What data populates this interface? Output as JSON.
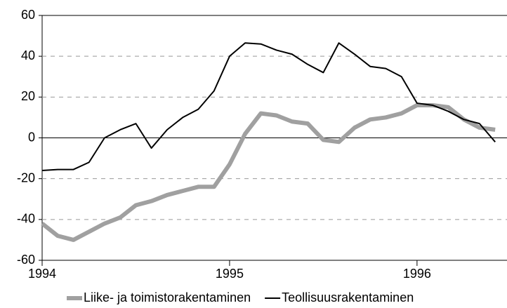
{
  "chart_data": {
    "type": "line",
    "x": [
      1994,
      1994.083,
      1994.167,
      1994.25,
      1994.333,
      1994.417,
      1994.5,
      1994.583,
      1994.667,
      1994.75,
      1994.833,
      1994.917,
      1995,
      1995.083,
      1995.167,
      1995.25,
      1995.333,
      1995.417,
      1995.5,
      1995.583,
      1995.667,
      1995.75,
      1995.833,
      1995.917,
      1996,
      1996.083,
      1996.167,
      1996.25,
      1996.333,
      1996.417
    ],
    "series": [
      {
        "name": "Liike- ja toimistorakentaminen",
        "color": "#a0a0a0",
        "values": [
          -42,
          -48,
          -50,
          -46,
          -42,
          -39,
          -33,
          -31,
          -28,
          -26,
          -24,
          -24,
          -13,
          2,
          12,
          11,
          8,
          7,
          -1,
          -2,
          5,
          9,
          10,
          12,
          16,
          16,
          15,
          9,
          5,
          4
        ]
      },
      {
        "name": "Teollisuusrakentaminen",
        "color": "#000000",
        "values": [
          -16,
          -15.5,
          -15.5,
          -12,
          0,
          4,
          7,
          -5,
          4,
          10,
          14,
          23,
          40,
          46.5,
          46,
          43,
          41,
          36,
          32,
          46.5,
          41,
          35,
          34,
          30,
          17,
          16,
          13,
          9,
          7,
          -2
        ]
      }
    ],
    "xlim": [
      1994,
      1996.48
    ],
    "xticks": [
      1994,
      1995,
      1996
    ],
    "ylim": [
      -60,
      60
    ],
    "yticks": [
      -60,
      -40,
      -20,
      0,
      20,
      40,
      60
    ],
    "grid": true,
    "legend": "bottom"
  }
}
